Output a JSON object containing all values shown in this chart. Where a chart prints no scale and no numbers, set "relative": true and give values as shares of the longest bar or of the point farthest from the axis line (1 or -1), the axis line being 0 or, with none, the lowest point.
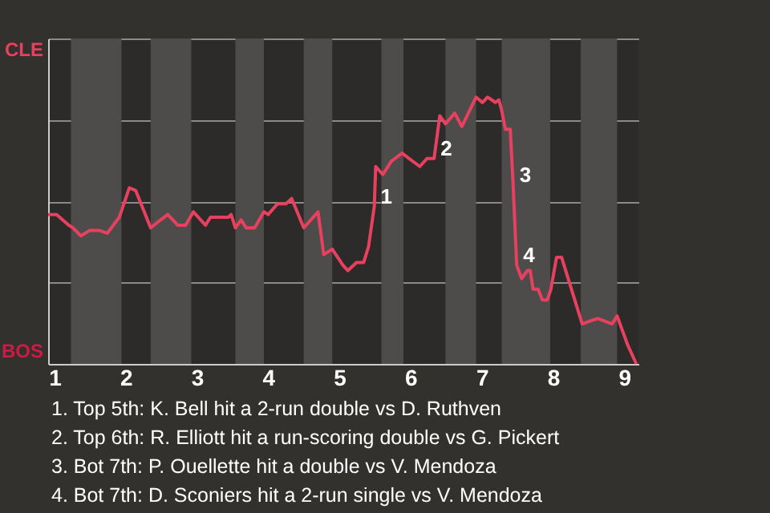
{
  "chart_data": {
    "type": "line",
    "relative": true,
    "x": [
      0.91,
      1.03,
      1.2,
      1.26,
      1.37,
      1.49,
      1.63,
      1.74,
      1.91,
      2.05,
      2.14,
      2.35,
      2.49,
      2.59,
      2.73,
      2.84,
      2.95,
      3.12,
      3.19,
      3.44,
      3.48,
      3.54,
      3.62,
      3.69,
      3.81,
      3.94,
      4,
      4.13,
      4.25,
      4.33,
      4.5,
      4.7,
      4.78,
      4.9,
      5.05,
      5.12,
      5.24,
      5.34,
      5.41,
      5.49,
      5.51,
      5.61,
      5.73,
      5.88,
      6.13,
      6.23,
      6.33,
      6.41,
      6.49,
      6.62,
      6.72,
      6.92,
      7.01,
      7.08,
      7.14,
      7.19,
      7.24,
      7.28,
      7.33,
      7.4,
      7.44,
      7.49,
      7.56,
      7.64,
      7.68,
      7.72,
      7.79,
      7.85,
      7.92,
      7.97,
      8.05,
      8.12,
      8.41,
      8.51,
      8.63,
      8.83,
      8.9,
      9.05,
      9.17
    ],
    "series": [
      {
        "color": "#e8405f",
        "values": [
          0.56,
          0.56,
          0.52,
          0.51,
          0.48,
          0.5,
          0.5,
          0.49,
          0.55,
          0.66,
          0.65,
          0.51,
          0.54,
          0.56,
          0.52,
          0.52,
          0.57,
          0.52,
          0.55,
          0.55,
          0.56,
          0.51,
          0.54,
          0.51,
          0.51,
          0.57,
          0.56,
          0.6,
          0.6,
          0.62,
          0.51,
          0.57,
          0.41,
          0.43,
          0.37,
          0.35,
          0.38,
          0.38,
          0.44,
          0.59,
          0.74,
          0.71,
          0.76,
          0.79,
          0.74,
          0.77,
          0.77,
          0.93,
          0.9,
          0.94,
          0.89,
          1,
          0.98,
          1,
          0.99,
          0.98,
          0.99,
          0.95,
          0.88,
          0.88,
          0.67,
          0.37,
          0.32,
          0.35,
          0.35,
          0.28,
          0.28,
          0.24,
          0.24,
          0.28,
          0.4,
          0.4,
          0.15,
          0.16,
          0.17,
          0.15,
          0.18,
          0.07,
          0
        ]
      }
    ],
    "xlim": [
      0.91,
      9.2
    ],
    "xticks": [
      1,
      2,
      3,
      4,
      5,
      6,
      7,
      8,
      9
    ],
    "grid": "y",
    "marker": "none",
    "line_style": "solid",
    "bands": [
      {
        "axis": "x",
        "from": 1.23,
        "to": 1.94,
        "color": "#4d4c4a"
      },
      {
        "axis": "x",
        "from": 2.35,
        "to": 2.92,
        "color": "#4d4c4a"
      },
      {
        "axis": "x",
        "from": 3.54,
        "to": 3.94,
        "color": "#4d4c4a"
      },
      {
        "axis": "x",
        "from": 4.5,
        "to": 4.9,
        "color": "#4d4c4a"
      },
      {
        "axis": "x",
        "from": 5.59,
        "to": 5.9,
        "color": "#4d4c4a"
      },
      {
        "axis": "x",
        "from": 6.49,
        "to": 6.92,
        "color": "#4d4c4a"
      },
      {
        "axis": "x",
        "from": 7.28,
        "to": 7.96,
        "color": "#4d4c4a"
      },
      {
        "axis": "x",
        "from": 8.39,
        "to": 8.9,
        "color": "#4d4c4a"
      }
    ],
    "annotations": [
      {
        "text": "1",
        "x": 5.49,
        "y": 0.59
      },
      {
        "text": "2",
        "x": 6.33,
        "y": 0.77
      },
      {
        "text": "3",
        "x": 7.44,
        "y": 0.67
      },
      {
        "text": "4",
        "x": 7.49,
        "y": 0.37
      },
      "CLE",
      "BOS",
      "1. Top 5th: K. Bell hit a 2-run double vs D. Ruthven",
      "2. Top 6th: R. Elliott hit a run-scoring double vs G. Pickert",
      "3. Bot 7th: P. Ouellette hit a double vs V. Mendoza",
      "4. Bot 7th: D. Sconiers hit a 2-run single vs V. Mendoza"
    ]
  }
}
